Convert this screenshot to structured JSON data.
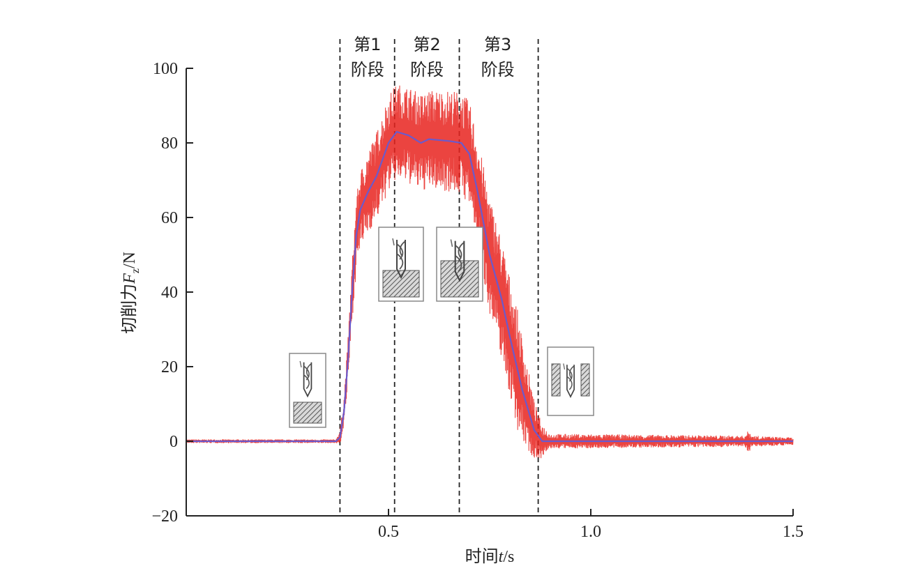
{
  "chart_data": {
    "type": "line",
    "xlabel": "时间t/s",
    "xlabel_parts": [
      "时间",
      "t",
      "/s"
    ],
    "ylabel_parts": [
      "切削力",
      "F",
      "z",
      "/N"
    ],
    "xlim": [
      0,
      1.5
    ],
    "ylim": [
      -20,
      100
    ],
    "x_ticks": [
      0.5,
      1.0,
      1.5
    ],
    "x_tick_labels": [
      "0.5",
      "1.0",
      "1.5"
    ],
    "y_ticks": [
      -20,
      0,
      20,
      40,
      60,
      80,
      100
    ],
    "y_tick_labels": [
      "−20",
      "0",
      "20",
      "40",
      "60",
      "80",
      "100"
    ],
    "grid": false,
    "stage_boundaries": [
      0.38,
      0.515,
      0.675,
      0.87
    ],
    "stages": [
      {
        "line1": "第1",
        "line2": "阶段",
        "x_center": 0.448
      },
      {
        "line1": "第2",
        "line2": "阶段",
        "x_center": 0.595
      },
      {
        "line1": "第3",
        "line2": "阶段",
        "x_center": 0.77
      }
    ],
    "series": [
      {
        "role": "raw",
        "color": "#e8231e",
        "amplitude": [
          [
            0,
            0.5
          ],
          [
            0.37,
            0.5
          ],
          [
            0.38,
            2
          ],
          [
            0.42,
            10
          ],
          [
            0.5,
            13
          ],
          [
            0.55,
            13
          ],
          [
            0.7,
            14
          ],
          [
            0.76,
            16
          ],
          [
            0.82,
            16
          ],
          [
            0.87,
            6
          ],
          [
            0.9,
            2
          ],
          [
            1.38,
            1.5
          ],
          [
            1.39,
            3
          ],
          [
            1.4,
            1.5
          ],
          [
            1.5,
            1
          ]
        ]
      },
      {
        "role": "mean",
        "color": "#6a5acd",
        "x": [
          0,
          0.37,
          0.38,
          0.39,
          0.4,
          0.41,
          0.42,
          0.43,
          0.45,
          0.47,
          0.5,
          0.52,
          0.55,
          0.58,
          0.6,
          0.65,
          0.68,
          0.7,
          0.72,
          0.75,
          0.78,
          0.8,
          0.83,
          0.86,
          0.88,
          0.9,
          1.0,
          1.2,
          1.5
        ],
        "y": [
          0,
          0,
          1,
          8,
          22,
          40,
          55,
          62,
          67,
          71,
          80,
          83,
          82,
          80,
          81,
          80.5,
          80,
          77,
          67,
          50,
          38,
          28,
          14,
          3,
          0,
          0,
          0,
          0,
          0
        ]
      }
    ],
    "insets": [
      {
        "icon": "tool-entering-workpiece-icon",
        "x": 0.26
      },
      {
        "icon": "tool-half-engaged-icon",
        "x": 0.527
      },
      {
        "icon": "tool-fully-engaged-icon",
        "x": 0.667
      },
      {
        "icon": "tool-exiting-workpiece-icon",
        "x": 0.955
      }
    ]
  }
}
